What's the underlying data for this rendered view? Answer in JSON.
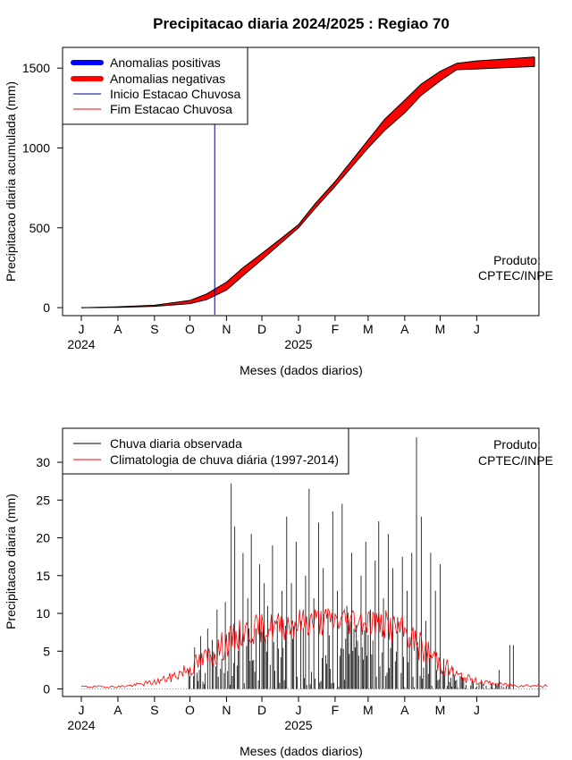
{
  "title": "Precipitacao diaria 2024/2025 : Regiao 70",
  "top_panel": {
    "ylabel": "Precipitacao diaria acumulada (mm)",
    "xlabel": "Meses (dados diarios)",
    "credit_line1": "Produto:",
    "credit_line2": "CPTEC/INPE",
    "legend": [
      {
        "label": "Anomalias positivas",
        "color": "#0000ff",
        "style": "thick"
      },
      {
        "label": "Anomalias negativas",
        "color": "#ff0000",
        "style": "thick"
      },
      {
        "label": "Inicio Estacao Chuvosa",
        "color": "#00008b",
        "style": "thin"
      },
      {
        "label": "Fim Estacao Chuvosa",
        "color": "#ff0000",
        "style": "thin"
      }
    ]
  },
  "bottom_panel": {
    "ylabel": "Precipitacao diaria (mm)",
    "xlabel": "Meses (dados diarios)",
    "credit_line1": "Produto:",
    "credit_line2": "CPTEC/INPE",
    "legend": [
      {
        "label": "Chuva diaria observada",
        "color": "#000000"
      },
      {
        "label": "Climatologia de chuva diária (1997-2014)",
        "color": "#ff0000"
      }
    ]
  },
  "months": [
    "J",
    "A",
    "S",
    "O",
    "N",
    "D",
    "J",
    "F",
    "M",
    "A",
    "M",
    "J"
  ],
  "years": [
    "2024",
    "2025"
  ],
  "chart_data": [
    {
      "type": "area",
      "title": "Precipitacao diaria 2024/2025 : Regiao 70",
      "xlabel": "Meses (dados diarios)",
      "ylabel": "Precipitacao diaria acumulada (mm)",
      "x_start": "2024-07-01",
      "x_end": "2025-07-31",
      "ylim": [
        -50,
        1630
      ],
      "yticks": [
        0,
        500,
        1000,
        1500
      ],
      "rainy_season_start": "2024-10-22",
      "observed_cumulative": [
        {
          "date": "2024-07-01",
          "value": 0
        },
        {
          "date": "2024-08-01",
          "value": 2
        },
        {
          "date": "2024-09-01",
          "value": 8
        },
        {
          "date": "2024-10-01",
          "value": 25
        },
        {
          "date": "2024-10-15",
          "value": 50
        },
        {
          "date": "2024-11-01",
          "value": 110
        },
        {
          "date": "2024-11-15",
          "value": 200
        },
        {
          "date": "2024-12-01",
          "value": 300
        },
        {
          "date": "2024-12-15",
          "value": 390
        },
        {
          "date": "2025-01-01",
          "value": 500
        },
        {
          "date": "2025-01-15",
          "value": 620
        },
        {
          "date": "2025-02-01",
          "value": 760
        },
        {
          "date": "2025-02-15",
          "value": 880
        },
        {
          "date": "2025-03-01",
          "value": 1000
        },
        {
          "date": "2025-03-15",
          "value": 1110
        },
        {
          "date": "2025-04-01",
          "value": 1220
        },
        {
          "date": "2025-04-15",
          "value": 1330
        },
        {
          "date": "2025-05-01",
          "value": 1420
        },
        {
          "date": "2025-05-15",
          "value": 1490
        },
        {
          "date": "2025-06-01",
          "value": 1495
        },
        {
          "date": "2025-07-01",
          "value": 1505
        },
        {
          "date": "2025-07-20",
          "value": 1510
        }
      ],
      "climatology_cumulative": [
        {
          "date": "2024-07-01",
          "value": 0
        },
        {
          "date": "2024-08-01",
          "value": 5
        },
        {
          "date": "2024-09-01",
          "value": 15
        },
        {
          "date": "2024-10-01",
          "value": 45
        },
        {
          "date": "2024-10-15",
          "value": 85
        },
        {
          "date": "2024-11-01",
          "value": 160
        },
        {
          "date": "2024-11-15",
          "value": 250
        },
        {
          "date": "2024-12-01",
          "value": 340
        },
        {
          "date": "2024-12-15",
          "value": 420
        },
        {
          "date": "2025-01-01",
          "value": 520
        },
        {
          "date": "2025-01-15",
          "value": 650
        },
        {
          "date": "2025-02-01",
          "value": 790
        },
        {
          "date": "2025-02-15",
          "value": 920
        },
        {
          "date": "2025-03-01",
          "value": 1050
        },
        {
          "date": "2025-03-15",
          "value": 1180
        },
        {
          "date": "2025-04-01",
          "value": 1300
        },
        {
          "date": "2025-04-15",
          "value": 1400
        },
        {
          "date": "2025-05-01",
          "value": 1480
        },
        {
          "date": "2025-05-15",
          "value": 1530
        },
        {
          "date": "2025-06-01",
          "value": 1545
        },
        {
          "date": "2025-07-01",
          "value": 1560
        },
        {
          "date": "2025-07-20",
          "value": 1570
        }
      ]
    },
    {
      "type": "bar",
      "xlabel": "Meses (dados diarios)",
      "ylabel": "Precipitacao diaria (mm)",
      "x_start": "2024-07-01",
      "x_end": "2025-07-31",
      "ylim": [
        -1,
        34.5
      ],
      "yticks": [
        0,
        5,
        10,
        15,
        20,
        25,
        30
      ],
      "observed_peaks": [
        {
          "date": "2024-09-30",
          "value": 2.5
        },
        {
          "date": "2024-10-05",
          "value": 5.5
        },
        {
          "date": "2024-10-10",
          "value": 7.0
        },
        {
          "date": "2024-10-16",
          "value": 8.0
        },
        {
          "date": "2024-10-20",
          "value": 6.5
        },
        {
          "date": "2024-10-24",
          "value": 10.5
        },
        {
          "date": "2024-10-28",
          "value": 4.0
        },
        {
          "date": "2024-10-31",
          "value": 11.5
        },
        {
          "date": "2024-11-03",
          "value": 7.5
        },
        {
          "date": "2024-11-05",
          "value": 27.2
        },
        {
          "date": "2024-11-08",
          "value": 21.5
        },
        {
          "date": "2024-11-12",
          "value": 9.0
        },
        {
          "date": "2024-11-15",
          "value": 18.0
        },
        {
          "date": "2024-11-19",
          "value": 12.0
        },
        {
          "date": "2024-11-22",
          "value": 20.5
        },
        {
          "date": "2024-11-26",
          "value": 8.0
        },
        {
          "date": "2024-11-29",
          "value": 16.5
        },
        {
          "date": "2024-12-03",
          "value": 14.0
        },
        {
          "date": "2024-12-06",
          "value": 11.0
        },
        {
          "date": "2024-12-10",
          "value": 19.0
        },
        {
          "date": "2024-12-14",
          "value": 9.0
        },
        {
          "date": "2024-12-18",
          "value": 13.0
        },
        {
          "date": "2024-12-22",
          "value": 22.8
        },
        {
          "date": "2024-12-26",
          "value": 14.0
        },
        {
          "date": "2024-12-30",
          "value": 19.5
        },
        {
          "date": "2025-01-03",
          "value": 9.0
        },
        {
          "date": "2025-01-07",
          "value": 15.0
        },
        {
          "date": "2025-01-10",
          "value": 26.5
        },
        {
          "date": "2025-01-14",
          "value": 12.0
        },
        {
          "date": "2025-01-18",
          "value": 22.0
        },
        {
          "date": "2025-01-22",
          "value": 16.0
        },
        {
          "date": "2025-01-26",
          "value": 10.0
        },
        {
          "date": "2025-01-30",
          "value": 23.5
        },
        {
          "date": "2025-02-03",
          "value": 13.0
        },
        {
          "date": "2025-02-07",
          "value": 24.5
        },
        {
          "date": "2025-02-11",
          "value": 11.0
        },
        {
          "date": "2025-02-15",
          "value": 18.0
        },
        {
          "date": "2025-02-19",
          "value": 8.5
        },
        {
          "date": "2025-02-23",
          "value": 15.0
        },
        {
          "date": "2025-02-27",
          "value": 19.5
        },
        {
          "date": "2025-03-03",
          "value": 10.5
        },
        {
          "date": "2025-03-07",
          "value": 17.0
        },
        {
          "date": "2025-03-10",
          "value": 22.2
        },
        {
          "date": "2025-03-14",
          "value": 12.0
        },
        {
          "date": "2025-03-18",
          "value": 20.5
        },
        {
          "date": "2025-03-22",
          "value": 16.0
        },
        {
          "date": "2025-03-26",
          "value": 9.5
        },
        {
          "date": "2025-03-30",
          "value": 17.5
        },
        {
          "date": "2025-04-03",
          "value": 13.0
        },
        {
          "date": "2025-04-07",
          "value": 18.0
        },
        {
          "date": "2025-04-11",
          "value": 33.3
        },
        {
          "date": "2025-04-15",
          "value": 22.8
        },
        {
          "date": "2025-04-19",
          "value": 9.0
        },
        {
          "date": "2025-04-23",
          "value": 18.0
        },
        {
          "date": "2025-04-27",
          "value": 13.0
        },
        {
          "date": "2025-05-01",
          "value": 16.5
        },
        {
          "date": "2025-05-04",
          "value": 4.0
        },
        {
          "date": "2025-05-12",
          "value": 2.8
        },
        {
          "date": "2025-05-20",
          "value": 1.5
        },
        {
          "date": "2025-06-05",
          "value": 1.2
        },
        {
          "date": "2025-06-20",
          "value": 2.5
        },
        {
          "date": "2025-06-29",
          "value": 5.8
        },
        {
          "date": "2025-07-02",
          "value": 5.8
        }
      ],
      "climatology": [
        {
          "date": "2024-07-01",
          "value": 0.3
        },
        {
          "date": "2024-07-15",
          "value": 0.3
        },
        {
          "date": "2024-08-01",
          "value": 0.3
        },
        {
          "date": "2024-08-15",
          "value": 0.5
        },
        {
          "date": "2024-09-01",
          "value": 0.9
        },
        {
          "date": "2024-09-15",
          "value": 1.5
        },
        {
          "date": "2024-10-01",
          "value": 2.8
        },
        {
          "date": "2024-10-15",
          "value": 4.0
        },
        {
          "date": "2024-11-01",
          "value": 6.0
        },
        {
          "date": "2024-11-15",
          "value": 7.5
        },
        {
          "date": "2024-12-01",
          "value": 8.0
        },
        {
          "date": "2024-12-15",
          "value": 8.3
        },
        {
          "date": "2025-01-01",
          "value": 8.8
        },
        {
          "date": "2025-01-15",
          "value": 9.0
        },
        {
          "date": "2025-02-01",
          "value": 9.0
        },
        {
          "date": "2025-02-15",
          "value": 9.2
        },
        {
          "date": "2025-03-01",
          "value": 9.0
        },
        {
          "date": "2025-03-15",
          "value": 8.5
        },
        {
          "date": "2025-04-01",
          "value": 7.5
        },
        {
          "date": "2025-04-15",
          "value": 5.5
        },
        {
          "date": "2025-05-01",
          "value": 3.5
        },
        {
          "date": "2025-05-15",
          "value": 1.8
        },
        {
          "date": "2025-06-01",
          "value": 1.0
        },
        {
          "date": "2025-06-15",
          "value": 0.7
        },
        {
          "date": "2025-07-01",
          "value": 0.5
        },
        {
          "date": "2025-07-31",
          "value": 0.4
        }
      ]
    }
  ]
}
